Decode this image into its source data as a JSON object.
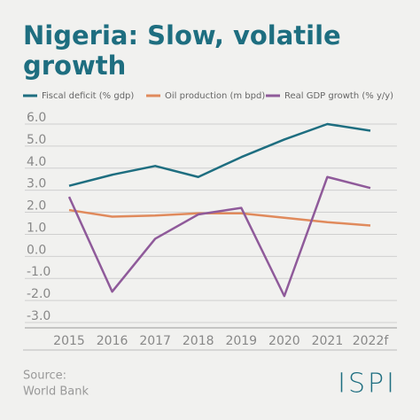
{
  "chart_data": {
    "type": "line",
    "title": "Nigeria: Slow, volatile growth",
    "title_lines": [
      "Nigeria: Slow, volatile",
      "growth"
    ],
    "categories": [
      "2015",
      "2016",
      "2017",
      "2018",
      "2019",
      "2020",
      "2021",
      "2022f"
    ],
    "series": [
      {
        "name": "Fiscal deficit (% gdp)",
        "color": "#1e6e80",
        "values": [
          3.2,
          3.7,
          4.1,
          3.6,
          4.5,
          5.3,
          6.0,
          5.7
        ]
      },
      {
        "name": "Oil production (m bpd)",
        "color": "#e08a5c",
        "values": [
          2.1,
          1.8,
          1.85,
          1.95,
          1.95,
          1.75,
          1.55,
          1.4
        ]
      },
      {
        "name": "Real GDP growth (% y/y)",
        "color": "#8f5a9a",
        "values": [
          2.7,
          -1.6,
          0.8,
          1.9,
          2.2,
          -1.8,
          3.6,
          3.1
        ]
      }
    ],
    "ylim": [
      -3,
      6
    ],
    "yticks": [
      {
        "value": 6,
        "label": "6.0"
      },
      {
        "value": 5,
        "label": "5.0"
      },
      {
        "value": 4,
        "label": "4.0"
      },
      {
        "value": 3,
        "label": "3.0"
      },
      {
        "value": 2,
        "label": "2.0"
      },
      {
        "value": 1,
        "label": "1.0"
      },
      {
        "value": 0,
        "label": "0.0"
      },
      {
        "value": -1,
        "label": "-1.0"
      },
      {
        "value": -2,
        "label": "-2.0"
      },
      {
        "value": -3,
        "label": "-3.0"
      }
    ],
    "grid": true,
    "legend": "top",
    "source_label": "Source:",
    "source": "World Bank",
    "logo": "ISPI"
  }
}
